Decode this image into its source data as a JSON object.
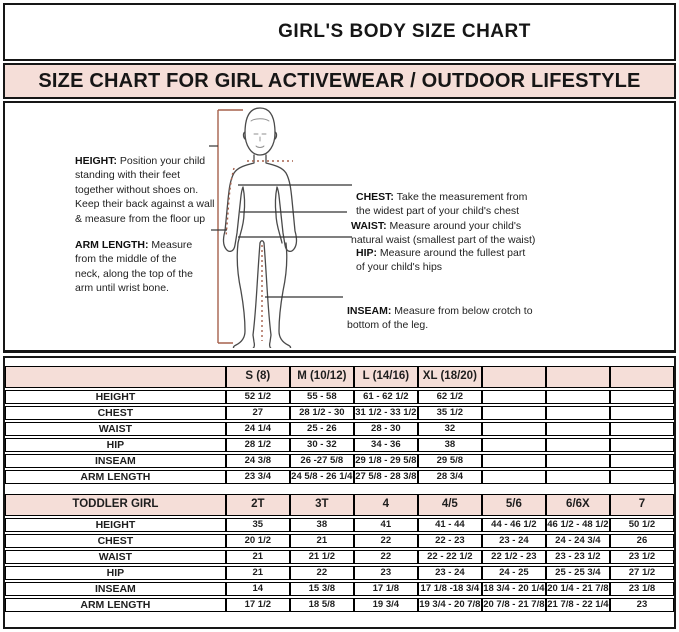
{
  "header": {
    "title": "GIRL'S BODY SIZE CHART",
    "banner": "SIZE CHART FOR GIRL ACTIVEWEAR / OUTDOOR LIFESTYLE"
  },
  "colors": {
    "pink": "#f5ded8",
    "measure_line_red": "#a5604c",
    "figure_outline": "#4a4a4a"
  },
  "diagram": {
    "height": {
      "label": "HEIGHT:",
      "text": " Position your child\nstanding with their feet\ntogether without shoes on.\nKeep their back against a wall\n& measure from the floor up"
    },
    "arm_length": {
      "label": "ARM LENGTH:",
      "text": "  Measure\nfrom the middle of the\nneck, along the top of the\narm until wrist bone."
    },
    "chest": {
      "label": "CHEST:",
      "text": " Take the measurement from\nthe widest part of your child's chest"
    },
    "waist": {
      "label": "WAIST:",
      "text": " Measure around your child's\nnatural waist (smallest part of the waist)"
    },
    "hip": {
      "label": "HIP:",
      "text": " Measure around the fullest part\nof your child's hips"
    },
    "inseam": {
      "label": "INSEAM:",
      "text": " Measure from below crotch to\nbottom of the leg."
    }
  },
  "size_table": {
    "columns": [
      "",
      "S (8)",
      "M (10/12)",
      "L (14/16)",
      "XL (18/20)",
      "",
      "",
      ""
    ],
    "rows": [
      {
        "label": "HEIGHT",
        "values": [
          "52 1/2",
          "55 - 58",
          "61 - 62 1/2",
          "62 1/2",
          "",
          "",
          ""
        ]
      },
      {
        "label": "CHEST",
        "values": [
          "27",
          "28 1/2 - 30",
          "31 1/2 - 33 1/2",
          "35 1/2",
          "",
          "",
          ""
        ]
      },
      {
        "label": "WAIST",
        "values": [
          "24 1/4",
          "25 - 26",
          "28 - 30",
          "32",
          "",
          "",
          ""
        ]
      },
      {
        "label": "HIP",
        "values": [
          "28 1/2",
          "30 - 32",
          "34 - 36",
          "38",
          "",
          "",
          ""
        ]
      },
      {
        "label": "INSEAM",
        "values": [
          "24 3/8",
          "26 -27 5/8",
          "29 1/8 - 29 5/8",
          "29 5/8",
          "",
          "",
          ""
        ]
      },
      {
        "label": "ARM LENGTH",
        "values": [
          "23 3/4",
          "24 5/8 - 26 1/4",
          "27 5/8 - 28 3/8",
          "28 3/4",
          "",
          "",
          ""
        ]
      }
    ]
  },
  "toddler_table": {
    "columns": [
      "TODDLER GIRL",
      "2T",
      "3T",
      "4",
      "4/5",
      "5/6",
      "6/6X",
      "7"
    ],
    "rows": [
      {
        "label": "HEIGHT",
        "values": [
          "35",
          "38",
          "41",
          "41 - 44",
          "44 - 46 1/2",
          "46 1/2 - 48 1/2",
          "50 1/2"
        ]
      },
      {
        "label": "CHEST",
        "values": [
          "20 1/2",
          "21",
          "22",
          "22 - 23",
          "23 - 24",
          "24 - 24 3/4",
          "26"
        ]
      },
      {
        "label": "WAIST",
        "values": [
          "21",
          "21 1/2",
          "22",
          "22 - 22 1/2",
          "22 1/2 - 23",
          "23 - 23 1/2",
          "23 1/2"
        ]
      },
      {
        "label": "HIP",
        "values": [
          "21",
          "22",
          "23",
          "23 - 24",
          "24 - 25",
          "25 - 25 3/4",
          "27 1/2"
        ]
      },
      {
        "label": "INSEAM",
        "values": [
          "14",
          "15 3/8",
          "17 1/8",
          "17 1/8 -18 3/4",
          "18 3/4 - 20 1/4",
          "20 1/4 - 21 7/8",
          "23 1/8"
        ]
      },
      {
        "label": "ARM LENGTH",
        "values": [
          "17 1/2",
          "18 5/8",
          "19 3/4",
          "19 3/4 - 20 7/8",
          "20 7/8 - 21 7/8",
          "21 7/8 - 22 1/4",
          "23"
        ]
      }
    ]
  }
}
